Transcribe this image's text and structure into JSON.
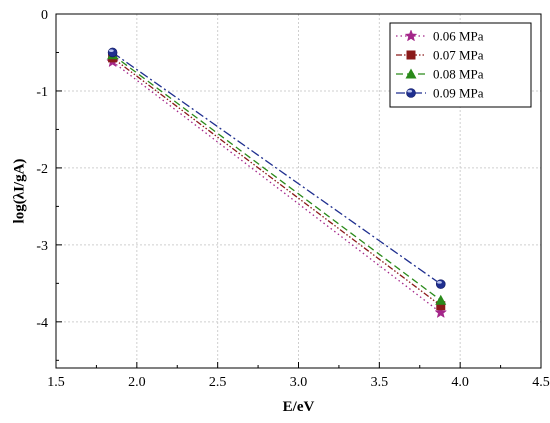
{
  "chart_data": {
    "type": "line",
    "xlabel": "E/eV",
    "ylabel": "log(λI/gA)",
    "xlim": [
      1.5,
      4.5
    ],
    "ylim": [
      -4.6,
      0
    ],
    "xticks": [
      "1.5",
      "2.0",
      "2.5",
      "3.0",
      "3.5",
      "4.0",
      "4.5"
    ],
    "yticks": [
      "0",
      "-1",
      "-2",
      "-3",
      "-4"
    ],
    "grid": true,
    "legend_position": "top-right",
    "x": [
      1.85,
      3.88
    ],
    "series": [
      {
        "name": "0.06 MPa",
        "values": [
          -0.62,
          -3.88
        ],
        "color": "#a4268a",
        "marker": "star",
        "dash": "dotted"
      },
      {
        "name": "0.07 MPa",
        "values": [
          -0.57,
          -3.79
        ],
        "color": "#8b1a1a",
        "marker": "square",
        "dash": "dash-dot-dot"
      },
      {
        "name": "0.08 MPa",
        "values": [
          -0.53,
          -3.72
        ],
        "color": "#2a8a1a",
        "marker": "triangle",
        "dash": "dashed"
      },
      {
        "name": "0.09 MPa",
        "values": [
          -0.5,
          -3.51
        ],
        "color": "#1f2f8f",
        "marker": "circle",
        "dash": "dash-dot"
      }
    ]
  }
}
